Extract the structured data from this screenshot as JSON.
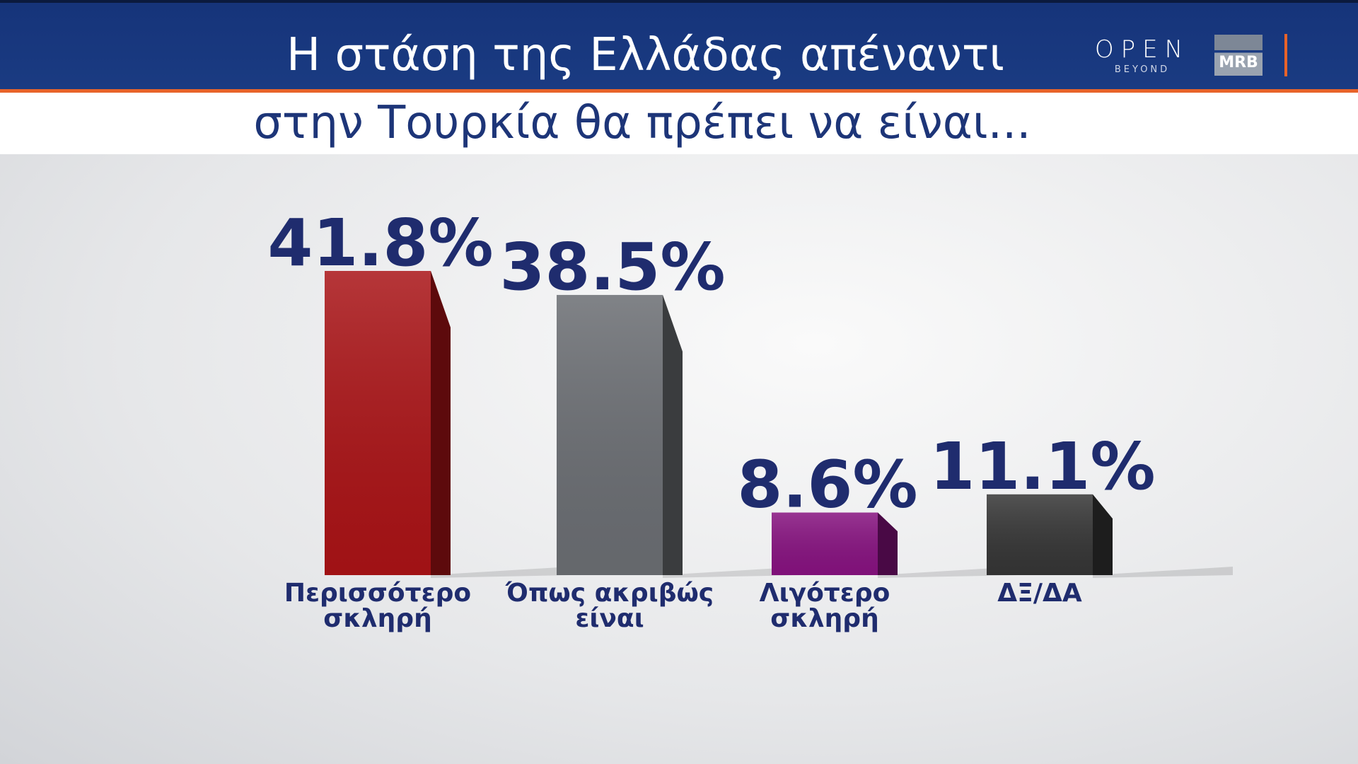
{
  "header": {
    "logo_open": "OPEN",
    "logo_beyond": "BEYOND",
    "logo_mrb": "MRB"
  },
  "chart_data": {
    "type": "bar",
    "title": "Η στάση της Ελλάδας απέναντι",
    "subtitle": "στην Τουρκία θα πρέπει να είναι...",
    "categories": [
      "Περισσότερο σκληρή",
      "Όπως ακριβώς είναι",
      "Λιγότερο σκληρή",
      "ΔΞ/ΔΑ"
    ],
    "values": [
      41.8,
      38.5,
      8.6,
      11.1
    ],
    "value_labels": [
      "41.8%",
      "38.5%",
      "8.6%",
      "11.1%"
    ],
    "colors": [
      "#a91316",
      "#6a6d72",
      "#86127f",
      "#353535"
    ]
  }
}
